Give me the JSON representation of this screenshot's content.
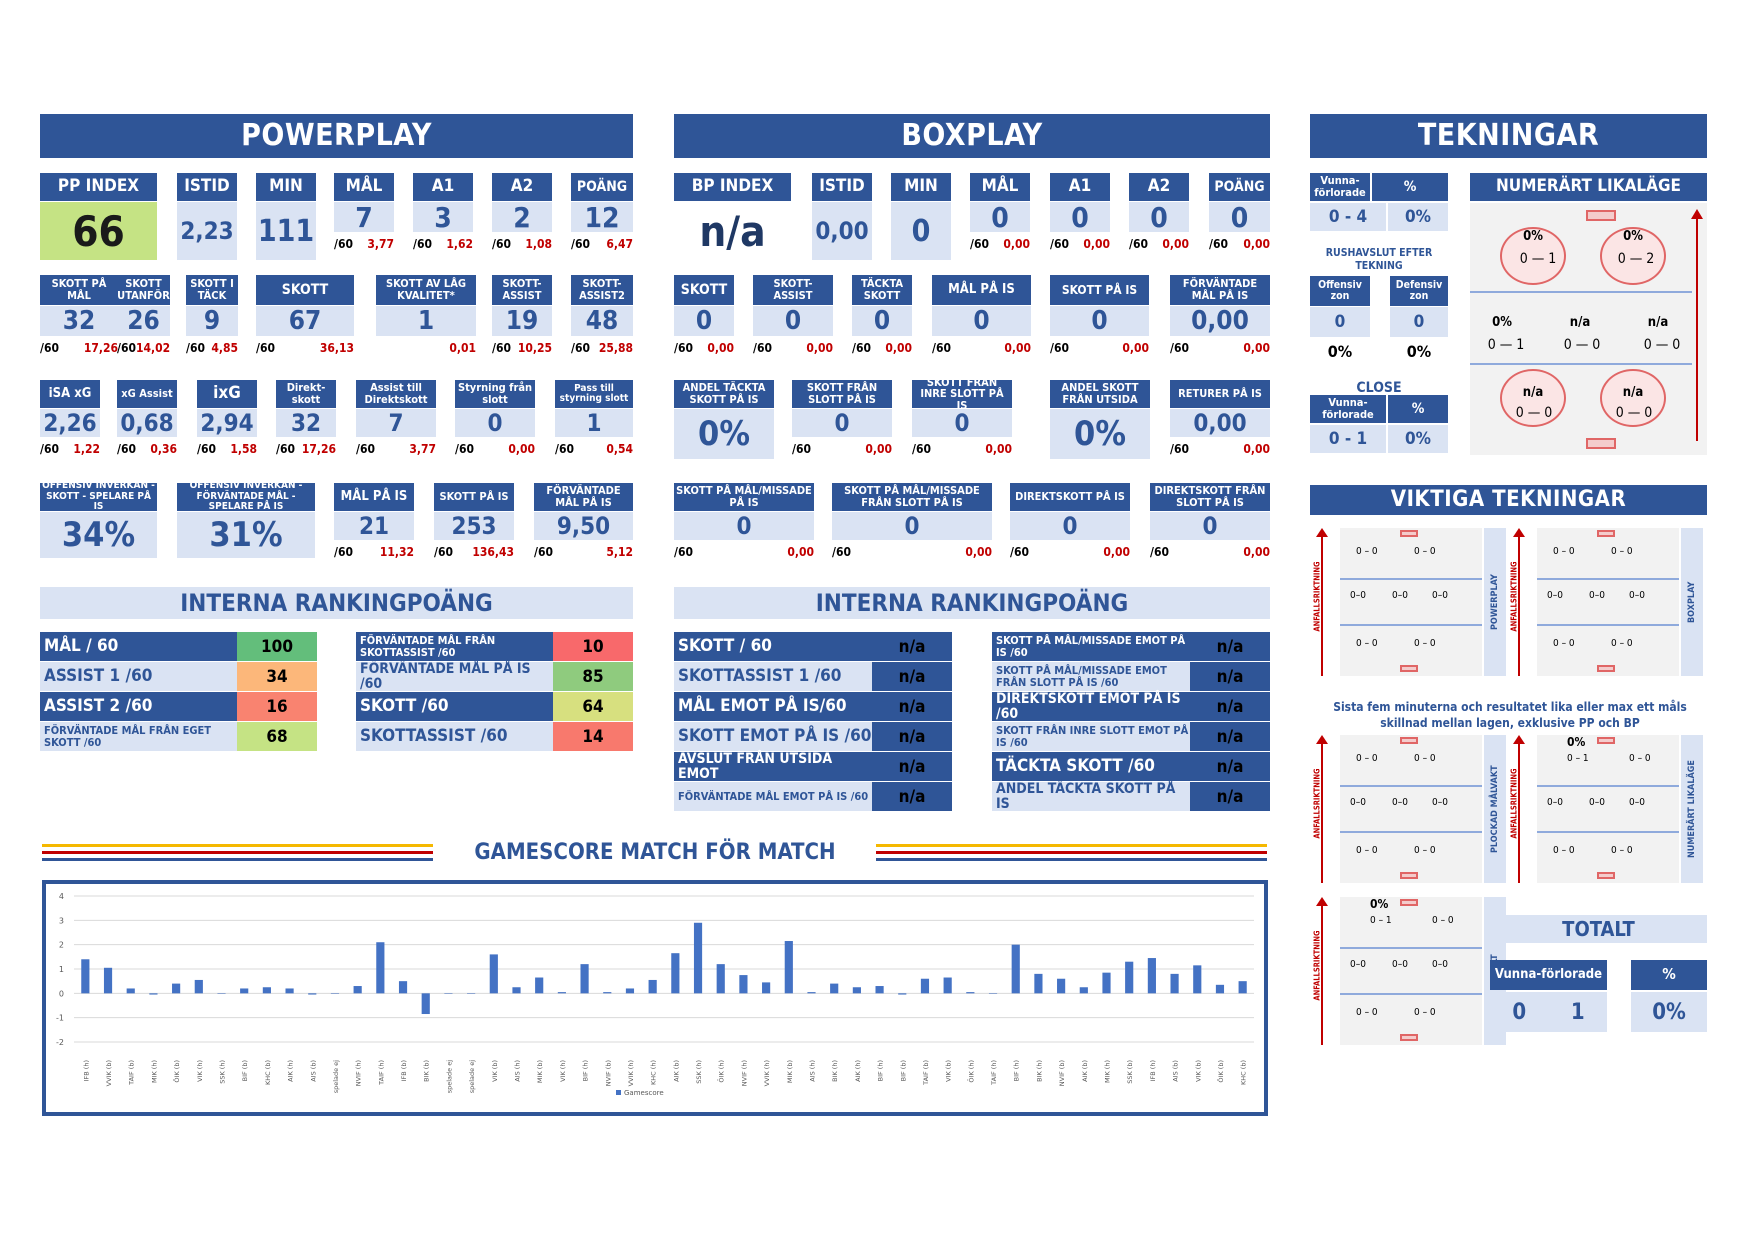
{
  "pp": {
    "header": "POWERPLAY",
    "row1": [
      {
        "label": "PP INDEX",
        "value": "66"
      },
      {
        "label": "ISTID",
        "value": "2,23"
      },
      {
        "label": "MIN",
        "value": "111"
      },
      {
        "label": "MÅL",
        "value": "7",
        "per": "/60",
        "rate": "3,77"
      },
      {
        "label": "A1",
        "value": "3",
        "per": "/60",
        "rate": "1,62"
      },
      {
        "label": "A2",
        "value": "2",
        "per": "/60",
        "rate": "1,08"
      },
      {
        "label": "POÄNG",
        "value": "12",
        "per": "/60",
        "rate": "6,47"
      }
    ],
    "row2": [
      {
        "label": "SKOTT PÅ MÅL",
        "value": "32",
        "per": "/60",
        "rate": "17,26"
      },
      {
        "label": "SKOTT UTANFÖR",
        "value": "26",
        "per": "/60",
        "rate": "14,02"
      },
      {
        "label": "SKOTT I TÄCK",
        "value": "9",
        "per": "/60",
        "rate": "4,85"
      },
      {
        "label": "SKOTT",
        "value": "67",
        "per": "/60",
        "rate": "36,13"
      },
      {
        "label": "SKOTT AV LÅG KVALITET*",
        "value": "1",
        "per": "",
        "rate": "0,01"
      },
      {
        "label": "SKOTT-ASSIST",
        "value": "19",
        "per": "/60",
        "rate": "10,25"
      },
      {
        "label": "SKOTT-ASSIST2",
        "value": "48",
        "per": "/60",
        "rate": "25,88"
      }
    ],
    "row3": [
      {
        "label": "iSA xG",
        "value": "2,26",
        "per": "/60",
        "rate": "1,22"
      },
      {
        "label": "xG Assist",
        "value": "0,68",
        "per": "/60",
        "rate": "0,36"
      },
      {
        "label": "ixG",
        "value": "2,94",
        "per": "/60",
        "rate": "1,58"
      },
      {
        "label": "Direkt-skott",
        "value": "32",
        "per": "/60",
        "rate": "17,26"
      },
      {
        "label": "Assist till Direktskott",
        "value": "7",
        "per": "/60",
        "rate": "3,77"
      },
      {
        "label": "Styrning från slott",
        "value": "0",
        "per": "/60",
        "rate": "0,00"
      },
      {
        "label": "Pass till styrning slott",
        "value": "1",
        "per": "/60",
        "rate": "0,54"
      }
    ],
    "row4": [
      {
        "label": "OFFENSIV INVERKAN - SKOTT - SPELARE PÅ IS",
        "value": "34%"
      },
      {
        "label": "OFFENSIV INVERKAN - FÖRVÄNTADE MÅL - SPELARE PÅ IS",
        "value": "31%"
      },
      {
        "label": "MÅL PÅ IS",
        "value": "21",
        "per": "/60",
        "rate": "11,32"
      },
      {
        "label": "SKOTT PÅ IS",
        "value": "253",
        "per": "/60",
        "rate": "136,43"
      },
      {
        "label": "FÖRVÄNTADE MÅL PÅ IS",
        "value": "9,50",
        "per": "/60",
        "rate": "5,12"
      }
    ],
    "rank_header": "INTERNA RANKINGPOÄNG",
    "rank_left": [
      {
        "label": "MÅL / 60",
        "value": "100",
        "color": "#63be7b"
      },
      {
        "label": "ASSIST 1 /60",
        "value": "34",
        "color": "#fcb77a"
      },
      {
        "label": "ASSIST 2 /60",
        "value": "16",
        "color": "#f98370"
      },
      {
        "label": "FÖRVÄNTADE MÅL FRÅN EGET SKOTT /60",
        "value": "68",
        "color": "#c5e384"
      }
    ],
    "rank_right": [
      {
        "label": "FÖRVÄNTADE MÅL FRÅN SKOTTASSIST /60",
        "value": "10",
        "color": "#f8696b"
      },
      {
        "label": "FÖRVÄNTADE MÅL PÅ IS /60",
        "value": "85",
        "color": "#8fcb7e"
      },
      {
        "label": "SKOTT /60",
        "value": "64",
        "color": "#d7e07f"
      },
      {
        "label": "SKOTTASSIST /60",
        "value": "14",
        "color": "#f8796d"
      }
    ]
  },
  "bp": {
    "header": "BOXPLAY",
    "row1": [
      {
        "label": "BP INDEX",
        "value": "n/a"
      },
      {
        "label": "ISTID",
        "value": "0,00"
      },
      {
        "label": "MIN",
        "value": "0"
      },
      {
        "label": "MÅL",
        "value": "0",
        "per": "/60",
        "rate": "0,00"
      },
      {
        "label": "A1",
        "value": "0",
        "per": "/60",
        "rate": "0,00"
      },
      {
        "label": "A2",
        "value": "0",
        "per": "/60",
        "rate": "0,00"
      },
      {
        "label": "POÄNG",
        "value": "0",
        "per": "/60",
        "rate": "0,00"
      }
    ],
    "row2": [
      {
        "label": "SKOTT",
        "value": "0",
        "per": "/60",
        "rate": "0,00"
      },
      {
        "label": "SKOTT-ASSIST",
        "value": "0",
        "per": "/60",
        "rate": "0,00"
      },
      {
        "label": "TÄCKTA SKOTT",
        "value": "0",
        "per": "/60",
        "rate": "0,00"
      },
      {
        "label": "MÅL PÅ IS",
        "value": "0",
        "per": "/60",
        "rate": "0,00"
      },
      {
        "label": "SKOTT PÅ IS",
        "value": "0",
        "per": "/60",
        "rate": "0,00"
      },
      {
        "label": "FÖRVÄNTADE MÅL PÅ IS",
        "value": "0,00",
        "per": "/60",
        "rate": "0,00"
      }
    ],
    "row3": [
      {
        "label": "ANDEL TÄCKTA SKOTT PÅ IS",
        "value": "0%"
      },
      {
        "label": "SKOTT FRÅN SLOTT PÅ IS",
        "value": "0",
        "per": "/60",
        "rate": "0,00"
      },
      {
        "label": "SKOTT FRÅN INRE SLOTT PÅ IS",
        "value": "0",
        "per": "/60",
        "rate": "0,00"
      },
      {
        "label": "ANDEL SKOTT FRÅN UTSIDA",
        "value": "0%"
      },
      {
        "label": "RETURER PÅ IS",
        "value": "0,00",
        "per": "/60",
        "rate": "0,00"
      }
    ],
    "row4": [
      {
        "label": "SKOTT PÅ MÅL/MISSADE PÅ IS",
        "value": "0",
        "per": "/60",
        "rate": "0,00"
      },
      {
        "label": "SKOTT PÅ MÅL/MISSADE FRÅN SLOTT PÅ IS",
        "value": "0",
        "per": "/60",
        "rate": "0,00"
      },
      {
        "label": "DIREKTSKOTT PÅ IS",
        "value": "0",
        "per": "/60",
        "rate": "0,00"
      },
      {
        "label": "DIREKTSKOTT FRÅN SLOTT PÅ IS",
        "value": "0",
        "per": "/60",
        "rate": "0,00"
      }
    ],
    "rank_header": "INTERNA RANKINGPOÄNG",
    "rank_left": [
      {
        "label": "SKOTT / 60",
        "value": "n/a"
      },
      {
        "label": "SKOTTASSIST 1 /60",
        "value": "n/a"
      },
      {
        "label": "MÅL EMOT PÅ IS/60",
        "value": "n/a"
      },
      {
        "label": "SKOTT EMOT PÅ IS /60",
        "value": "n/a"
      },
      {
        "label": "AVSLUT FRÅN UTSIDA EMOT",
        "value": "n/a"
      },
      {
        "label": "FÖRVÄNTADE MÅL EMOT PÅ IS /60",
        "value": "n/a"
      }
    ],
    "rank_right": [
      {
        "label": "SKOTT PÅ MÅL/MISSADE EMOT PÅ IS /60",
        "value": "n/a"
      },
      {
        "label": "SKOTT PÅ MÅL/MISSADE EMOT FRÅN SLOTT PÅ IS /60",
        "value": "n/a"
      },
      {
        "label": "DIREKTSKOTT EMOT PÅ IS /60",
        "value": "n/a"
      },
      {
        "label": "SKOTT FRÅN INRE SLOTT EMOT PÅ IS /60",
        "value": "n/a"
      },
      {
        "label": "TÄCKTA SKOTT /60",
        "value": "n/a"
      },
      {
        "label": "ANDEL TÄCKTA SKOTT PÅ IS",
        "value": "n/a"
      }
    ]
  },
  "tek": {
    "header": "TEKNINGAR",
    "wl_label": "Vunna-förlorade",
    "pct_label": "%",
    "wl1": "0 - 4",
    "pct1": "0%",
    "rush_title": "RUSHAVSLUT EFTER TEKNING",
    "off_label": "Offensiv zon",
    "def_label": "Defensiv zon",
    "off_val": "0",
    "def_val": "0",
    "off_pct": "0%",
    "def_pct": "0%",
    "close_label": "CLOSE",
    "wl2": "0 - 1",
    "pct2": "0%",
    "even_title": "NUMERÄRT LIKALÄGE",
    "even_spots": [
      {
        "pct": "0%",
        "score": "0 — 1"
      },
      {
        "pct": "0%",
        "score": "0 — 2"
      },
      {
        "pct": "0%",
        "score": "0 — 1"
      },
      {
        "pct": "n/a",
        "score": "0 — 0"
      },
      {
        "pct": "n/a",
        "score": "0 — 0"
      },
      {
        "pct": "n/a",
        "score": "0 — 0"
      },
      {
        "pct": "n/a",
        "score": "0 — 0"
      }
    ],
    "important_header": "VIKTIGA TEKNINGAR",
    "attack_dir": "ANFALLSRIKTNING",
    "panel_pp": "POWERPLAY",
    "panel_bp": "BOXPLAY",
    "panel_goalie": "PLOCKAD MÅLVAKT",
    "panel_even": "NUMERÄRT LIKALÄGE",
    "panel_total": "TOTALT",
    "note": "Sista fem minuterna och resultatet lika eller max ett måls skillnad mellan lagen, exklusive PP och BP",
    "even_top_pct": "0%",
    "even_top_score": "0 – 1",
    "total_top_pct": "0%",
    "total_top_score": "0 – 1",
    "zero_pair": "0 – 0",
    "zero_pair_tight": "0–0",
    "totalt_title": "TOTALT",
    "totalt_wl_label": "Vunna-förlorade",
    "totalt_pct_label": "%",
    "totalt_w": "0",
    "totalt_l": "1",
    "totalt_pct": "0%"
  },
  "gamescore": {
    "title": "GAMESCORE MATCH FÖR MATCH",
    "legend": "Gamescore"
  },
  "chart_data": {
    "type": "bar",
    "ylim": [
      -2,
      4
    ],
    "yticks": [
      -2,
      -1,
      0,
      1,
      2,
      3,
      4
    ],
    "series": [
      {
        "name": "Gamescore",
        "values": [
          1.4,
          1.05,
          0.2,
          -0.05,
          0.4,
          0.55,
          0.0,
          0.2,
          0.25,
          0.2,
          -0.05,
          0.0,
          0.3,
          2.1,
          0.5,
          -0.85,
          0.0,
          0.0,
          1.6,
          0.25,
          0.65,
          0.05,
          1.2,
          0.05,
          0.2,
          0.55,
          1.65,
          2.9,
          1.2,
          0.75,
          0.45,
          2.15,
          0.05,
          0.4,
          0.25,
          0.3,
          -0.05,
          0.6,
          0.65,
          0.05,
          0.0,
          2.0,
          0.8,
          0.6,
          0.25,
          0.85,
          1.3,
          1.45,
          0.8,
          1.15,
          0.35,
          0.5
        ]
      }
    ],
    "categories": [
      "IFB (h)",
      "VVIK (b)",
      "TAIF (b)",
      "MIK (h)",
      "ÖIK (b)",
      "VIK (h)",
      "SSK (h)",
      "BIF (b)",
      "KHC (b)",
      "AIK (h)",
      "AIS (b)",
      "spelade ej",
      "NVIF (h)",
      "TAIF (h)",
      "IFB (b)",
      "BIK (b)",
      "spelade ej",
      "spelade ej",
      "VIK (b)",
      "AIS (h)",
      "MIK (b)",
      "VIK (h)",
      "BIF (h)",
      "NVIF (b)",
      "VVIK (h)",
      "KHC (h)",
      "AIK (b)",
      "SSK (h)",
      "ÖIK (h)",
      "NVIF (h)",
      "VVIK (h)",
      "MIK (b)",
      "AIS (h)",
      "BIK (h)",
      "AIK (h)",
      "BIF (h)",
      "BIF (b)",
      "TAIF (b)",
      "VIK (b)",
      "ÖIK (h)",
      "TAIF (h)",
      "BIF (h)",
      "BIK (h)",
      "NVIF (b)",
      "AIK (b)",
      "MIK (h)",
      "SSK (b)",
      "IFB (h)",
      "AIS (b)",
      "VIK (b)",
      "ÖIK (b)",
      "KHC (b)"
    ]
  }
}
